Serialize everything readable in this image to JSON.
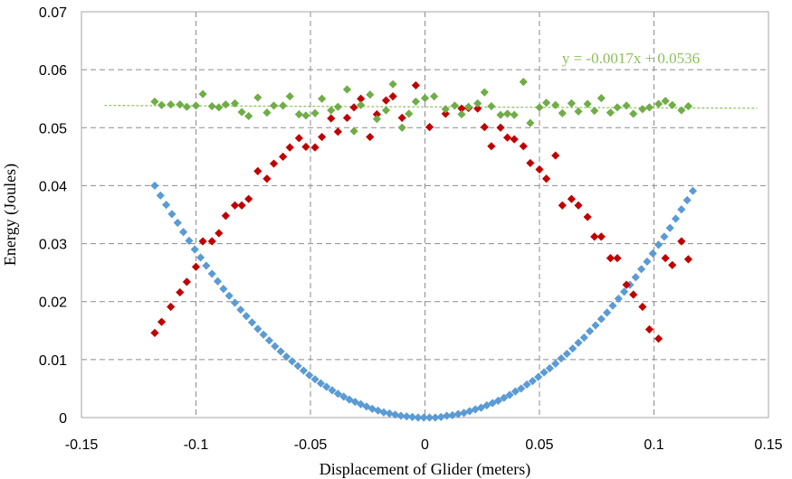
{
  "chart_data": {
    "type": "scatter",
    "xlabel": "Displacement of Glider (meters)",
    "ylabel": "Energy (Joules)",
    "xlim": [
      -0.15,
      0.15
    ],
    "ylim": [
      0,
      0.07
    ],
    "xticks": [
      -0.15,
      -0.1,
      -0.05,
      0,
      0.05,
      0.1,
      0.15
    ],
    "xtick_labels": [
      "-0.15",
      "-0.1",
      "-0.05",
      "0",
      "0.05",
      "0.1",
      "0.15"
    ],
    "yticks": [
      0,
      0.01,
      0.02,
      0.03,
      0.04,
      0.05,
      0.06,
      0.07
    ],
    "ytick_labels": [
      "0",
      "0.01",
      "0.02",
      "0.03",
      "0.04",
      "0.05",
      "0.06",
      "0.07"
    ],
    "grid": true,
    "legend": "none",
    "series": [
      {
        "color": "#5b9bd5",
        "marker": "diamond",
        "x": [
          -0.118,
          -0.1155,
          -0.113,
          -0.1105,
          -0.108,
          -0.1055,
          -0.103,
          -0.1005,
          -0.098,
          -0.0955,
          -0.093,
          -0.0905,
          -0.088,
          -0.0855,
          -0.083,
          -0.0805,
          -0.078,
          -0.0755,
          -0.073,
          -0.0705,
          -0.068,
          -0.0655,
          -0.063,
          -0.0605,
          -0.058,
          -0.0555,
          -0.053,
          -0.0505,
          -0.048,
          -0.0455,
          -0.043,
          -0.0405,
          -0.038,
          -0.0355,
          -0.033,
          -0.0305,
          -0.028,
          -0.0255,
          -0.023,
          -0.0205,
          -0.018,
          -0.0155,
          -0.013,
          -0.0105,
          -0.008,
          -0.0055,
          -0.003,
          -0.0005,
          0.002,
          0.0045,
          0.007,
          0.0095,
          0.012,
          0.0145,
          0.017,
          0.0195,
          0.022,
          0.0245,
          0.027,
          0.0295,
          0.032,
          0.0345,
          0.037,
          0.0395,
          0.042,
          0.0445,
          0.047,
          0.0495,
          0.052,
          0.0545,
          0.057,
          0.0595,
          0.062,
          0.0645,
          0.067,
          0.0695,
          0.072,
          0.0745,
          0.077,
          0.0795,
          0.082,
          0.0845,
          0.087,
          0.0895,
          0.092,
          0.0945,
          0.097,
          0.0995,
          0.102,
          0.1045,
          0.107,
          0.1095,
          0.112,
          0.1145,
          0.117
        ],
        "y": [
          0.04,
          0.0383,
          0.0367,
          0.0351,
          0.0336,
          0.032,
          0.0305,
          0.029,
          0.0276,
          0.0262,
          0.0248,
          0.0235,
          0.0222,
          0.021,
          0.0198,
          0.0186,
          0.0175,
          0.0164,
          0.0153,
          0.0143,
          0.0133,
          0.0123,
          0.0114,
          0.0105,
          0.0097,
          0.0089,
          0.0081,
          0.0073,
          0.0066,
          0.0059,
          0.0053,
          0.0047,
          0.0041,
          0.0036,
          0.0031,
          0.0027,
          0.0023,
          0.0019,
          0.0015,
          0.0012,
          0.0009,
          0.0007,
          0.0005,
          0.0003,
          0.0002,
          0.0001,
          0.0,
          0.0,
          0.0,
          0.0,
          0.0001,
          0.0003,
          0.0004,
          0.0006,
          0.0008,
          0.0011,
          0.0014,
          0.0017,
          0.0021,
          0.0025,
          0.0029,
          0.0034,
          0.0039,
          0.0045,
          0.005,
          0.0057,
          0.0063,
          0.007,
          0.0078,
          0.0085,
          0.0093,
          0.0102,
          0.011,
          0.0119,
          0.0129,
          0.0138,
          0.0149,
          0.0159,
          0.017,
          0.0181,
          0.0193,
          0.0205,
          0.0217,
          0.0229,
          0.0242,
          0.0256,
          0.0269,
          0.0283,
          0.0298,
          0.0312,
          0.0327,
          0.0343,
          0.0359,
          0.0375,
          0.0391
        ]
      },
      {
        "color": "#c00000",
        "marker": "diamond",
        "x": [
          -0.118,
          -0.115,
          -0.111,
          -0.107,
          -0.104,
          -0.1,
          -0.097,
          -0.093,
          -0.09,
          -0.087,
          -0.083,
          -0.08,
          -0.077,
          -0.073,
          -0.069,
          -0.066,
          -0.062,
          -0.059,
          -0.055,
          -0.052,
          -0.048,
          -0.045,
          -0.041,
          -0.038,
          -0.034,
          -0.031,
          -0.028,
          -0.024,
          -0.021,
          -0.017,
          -0.014,
          -0.01,
          -0.004,
          0.002,
          0.009,
          0.016,
          0.019,
          0.023,
          0.026,
          0.029,
          0.033,
          0.036,
          0.039,
          0.043,
          0.046,
          0.05,
          0.053,
          0.057,
          0.06,
          0.064,
          0.067,
          0.071,
          0.074,
          0.077,
          0.081,
          0.084,
          0.088,
          0.091,
          0.095,
          0.098,
          0.102,
          0.105,
          0.108,
          0.112,
          0.115
        ],
        "y": [
          0.0146,
          0.0165,
          0.0191,
          0.0216,
          0.0234,
          0.026,
          0.0304,
          0.0304,
          0.0318,
          0.0348,
          0.0366,
          0.0366,
          0.0377,
          0.0425,
          0.0412,
          0.0438,
          0.045,
          0.0466,
          0.0482,
          0.0467,
          0.0466,
          0.0484,
          0.0516,
          0.0493,
          0.0517,
          0.0535,
          0.055,
          0.0484,
          0.0523,
          0.0547,
          0.0554,
          0.0517,
          0.0573,
          0.0501,
          0.0524,
          0.0533,
          0.0534,
          0.0533,
          0.0501,
          0.0468,
          0.05,
          0.0483,
          0.048,
          0.0468,
          0.0439,
          0.0428,
          0.0412,
          0.0452,
          0.0366,
          0.0377,
          0.0366,
          0.0346,
          0.0312,
          0.0312,
          0.0275,
          0.0275,
          0.0229,
          0.0212,
          0.0191,
          0.0152,
          0.0136,
          0.0275,
          0.0263,
          0.0304,
          0.0273
        ]
      },
      {
        "color": "#70ad47",
        "marker": "diamond",
        "x": [
          -0.118,
          -0.115,
          -0.111,
          -0.107,
          -0.104,
          -0.1,
          -0.097,
          -0.093,
          -0.09,
          -0.087,
          -0.083,
          -0.08,
          -0.077,
          -0.073,
          -0.069,
          -0.066,
          -0.062,
          -0.059,
          -0.055,
          -0.052,
          -0.048,
          -0.045,
          -0.041,
          -0.038,
          -0.034,
          -0.031,
          -0.028,
          -0.024,
          -0.021,
          -0.017,
          -0.014,
          -0.01,
          -0.007,
          -0.004,
          0.0,
          0.004,
          0.009,
          0.013,
          0.016,
          0.019,
          0.023,
          0.026,
          0.029,
          0.033,
          0.036,
          0.039,
          0.043,
          0.046,
          0.05,
          0.053,
          0.057,
          0.06,
          0.064,
          0.067,
          0.071,
          0.074,
          0.077,
          0.081,
          0.084,
          0.088,
          0.091,
          0.095,
          0.098,
          0.102,
          0.105,
          0.108,
          0.112,
          0.115
        ],
        "y": [
          0.0545,
          0.0539,
          0.054,
          0.054,
          0.0536,
          0.0538,
          0.0558,
          0.0537,
          0.0535,
          0.054,
          0.0542,
          0.0527,
          0.052,
          0.0552,
          0.0526,
          0.0538,
          0.0538,
          0.0554,
          0.0523,
          0.0521,
          0.0525,
          0.055,
          0.053,
          0.0536,
          0.0566,
          0.0494,
          0.0539,
          0.0557,
          0.0515,
          0.053,
          0.0575,
          0.05,
          0.0524,
          0.0545,
          0.0551,
          0.0554,
          0.0532,
          0.0538,
          0.0523,
          0.0536,
          0.0542,
          0.0561,
          0.0537,
          0.0522,
          0.0524,
          0.0522,
          0.0579,
          0.0508,
          0.0535,
          0.0543,
          0.0539,
          0.0525,
          0.0542,
          0.0528,
          0.0541,
          0.0529,
          0.0551,
          0.0526,
          0.0535,
          0.0538,
          0.0524,
          0.0532,
          0.0535,
          0.0541,
          0.0546,
          0.0539,
          0.053,
          0.0537
        ]
      }
    ],
    "trendline": {
      "slope": -0.0017,
      "intercept": 0.0536,
      "x_range": [
        -0.14,
        0.145
      ],
      "color": "#8dbf5a",
      "dashed": true,
      "equation": "y = -0.0017x + 0.0536"
    }
  }
}
